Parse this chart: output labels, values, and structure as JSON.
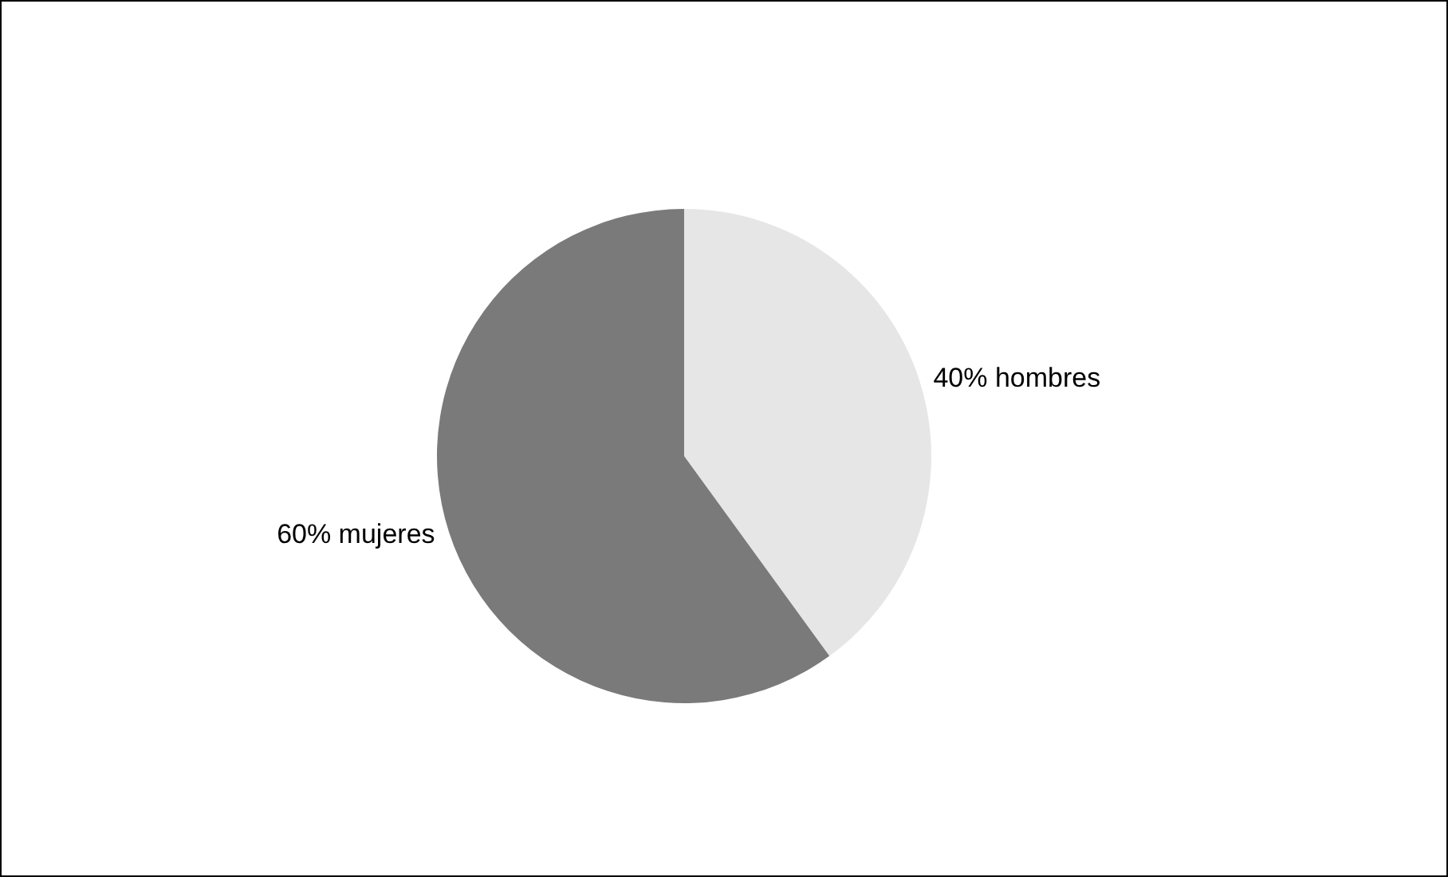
{
  "chart_data": {
    "type": "pie",
    "categories": [
      "hombres",
      "mujeres"
    ],
    "values": [
      40,
      60
    ],
    "value_labels": [
      "40%",
      "60%"
    ],
    "colors": [
      "#e6e6e6",
      "#7a7a7a"
    ],
    "legend": false
  }
}
